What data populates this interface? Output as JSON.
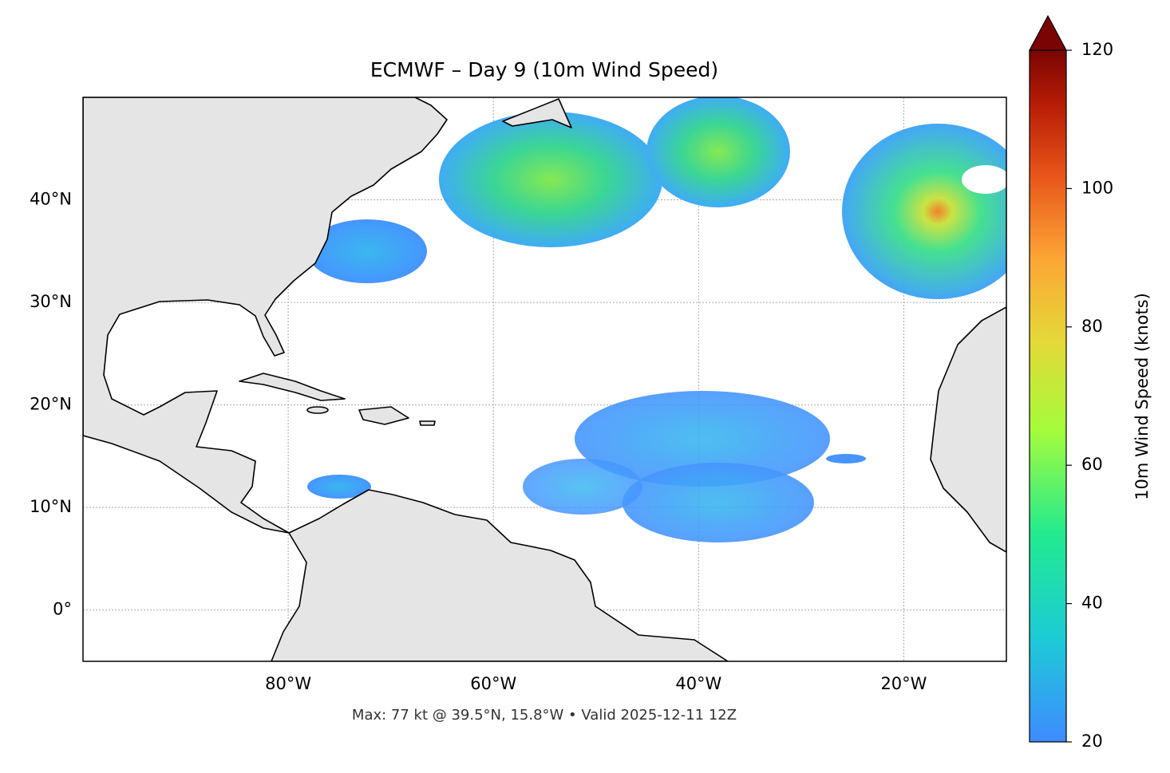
{
  "chart_data": {
    "type": "map",
    "title": "ECMWF – Day 9 (10m Wind Speed)",
    "subtitle": "Max: 77 kt @ 39.5°N, 15.8°W • Valid 2025-12-11 12Z",
    "xlim": [
      -100,
      -10
    ],
    "ylim": [
      -5,
      50
    ],
    "xticks": [
      {
        "value": -80,
        "label": "80°W"
      },
      {
        "value": -60,
        "label": "60°W"
      },
      {
        "value": -40,
        "label": "40°W"
      },
      {
        "value": -20,
        "label": "20°W"
      }
    ],
    "yticks": [
      {
        "value": 0,
        "label": "0°"
      },
      {
        "value": 10,
        "label": "10°N"
      },
      {
        "value": 20,
        "label": "20°N"
      },
      {
        "value": 30,
        "label": "30°N"
      },
      {
        "value": 40,
        "label": "40°N"
      }
    ],
    "grid": true,
    "colorbar": {
      "label": "10m Wind Speed (knots)",
      "lim": [
        20,
        120
      ],
      "ticks": [
        20,
        40,
        60,
        80,
        100,
        120
      ]
    }
  }
}
